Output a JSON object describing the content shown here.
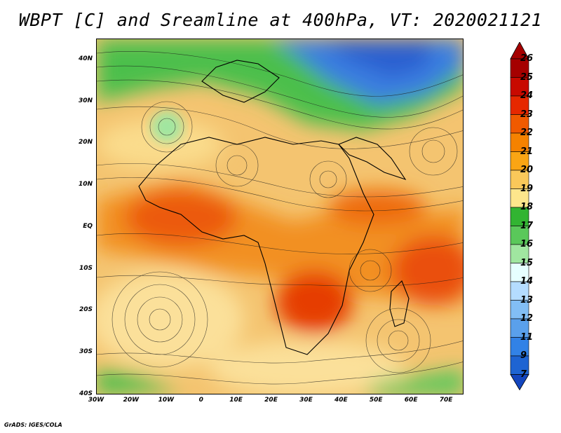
{
  "title": "WBPT [C] and Sreamline at 400hPa, VT: 2020021121",
  "credit": "GrADS: IGES/COLA",
  "map": {
    "lon_range": [
      -30,
      75
    ],
    "lat_range": [
      -40,
      45
    ],
    "x_ticks": [
      {
        "lon": -30,
        "label": "30W"
      },
      {
        "lon": -20,
        "label": "20W"
      },
      {
        "lon": -10,
        "label": "10W"
      },
      {
        "lon": 0,
        "label": "0"
      },
      {
        "lon": 10,
        "label": "10E"
      },
      {
        "lon": 20,
        "label": "20E"
      },
      {
        "lon": 30,
        "label": "30E"
      },
      {
        "lon": 40,
        "label": "40E"
      },
      {
        "lon": 50,
        "label": "50E"
      },
      {
        "lon": 60,
        "label": "60E"
      },
      {
        "lon": 70,
        "label": "70E"
      }
    ],
    "y_ticks": [
      {
        "lat": 40,
        "label": "40N"
      },
      {
        "lat": 30,
        "label": "30N"
      },
      {
        "lat": 20,
        "label": "20N"
      },
      {
        "lat": 10,
        "label": "10N"
      },
      {
        "lat": 0,
        "label": "EQ"
      },
      {
        "lat": -10,
        "label": "10S"
      },
      {
        "lat": -20,
        "label": "20S"
      },
      {
        "lat": -30,
        "label": "30S"
      },
      {
        "lat": -40,
        "label": "40S"
      }
    ]
  },
  "colorbar": {
    "levels": [
      {
        "label": "26",
        "color": "#a50000"
      },
      {
        "label": "25",
        "color": "#c80a00"
      },
      {
        "label": "24",
        "color": "#e62800"
      },
      {
        "label": "23",
        "color": "#f05a00"
      },
      {
        "label": "22",
        "color": "#f58200"
      },
      {
        "label": "21",
        "color": "#faa514"
      },
      {
        "label": "20",
        "color": "#fac85a"
      },
      {
        "label": "19",
        "color": "#fde68c"
      },
      {
        "label": "18",
        "color": "#32b432"
      },
      {
        "label": "17",
        "color": "#5ac85a"
      },
      {
        "label": "16",
        "color": "#a0e6a0"
      },
      {
        "label": "15",
        "color": "#e6ffff"
      },
      {
        "label": "14",
        "color": "#b4dcff"
      },
      {
        "label": "13",
        "color": "#82bef5"
      },
      {
        "label": "12",
        "color": "#5aa0eb"
      },
      {
        "label": "11",
        "color": "#3282e6"
      },
      {
        "label": "9",
        "color": "#1e64d2"
      },
      {
        "label": "7",
        "color": "#1446be"
      }
    ]
  }
}
